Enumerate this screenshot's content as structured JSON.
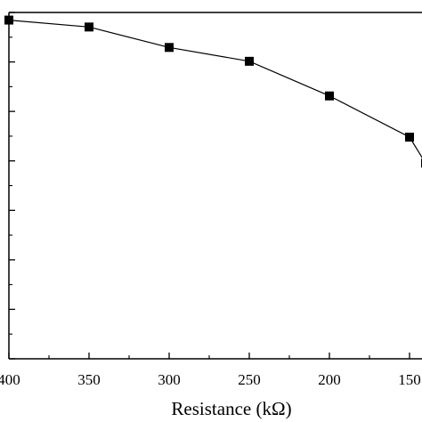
{
  "chart_data": {
    "type": "line",
    "title": "",
    "xlabel": "Resistance (kΩ)",
    "ylabel": "",
    "x_reversed": true,
    "xlim": [
      400,
      150
    ],
    "x_ticks": [
      400,
      350,
      300,
      250,
      200,
      150
    ],
    "x_tick_labels": [
      "400",
      "350",
      "300",
      "250",
      "200",
      "150"
    ],
    "marker": "square",
    "color": "#000000",
    "series": [
      {
        "x": [
          400,
          350,
          300,
          250,
          200,
          150,
          140
        ],
        "y": [
          0.978,
          0.958,
          0.899,
          0.859,
          0.759,
          0.64,
          0.565
        ]
      }
    ],
    "ylim": [
      0,
      1
    ],
    "grid": false
  }
}
